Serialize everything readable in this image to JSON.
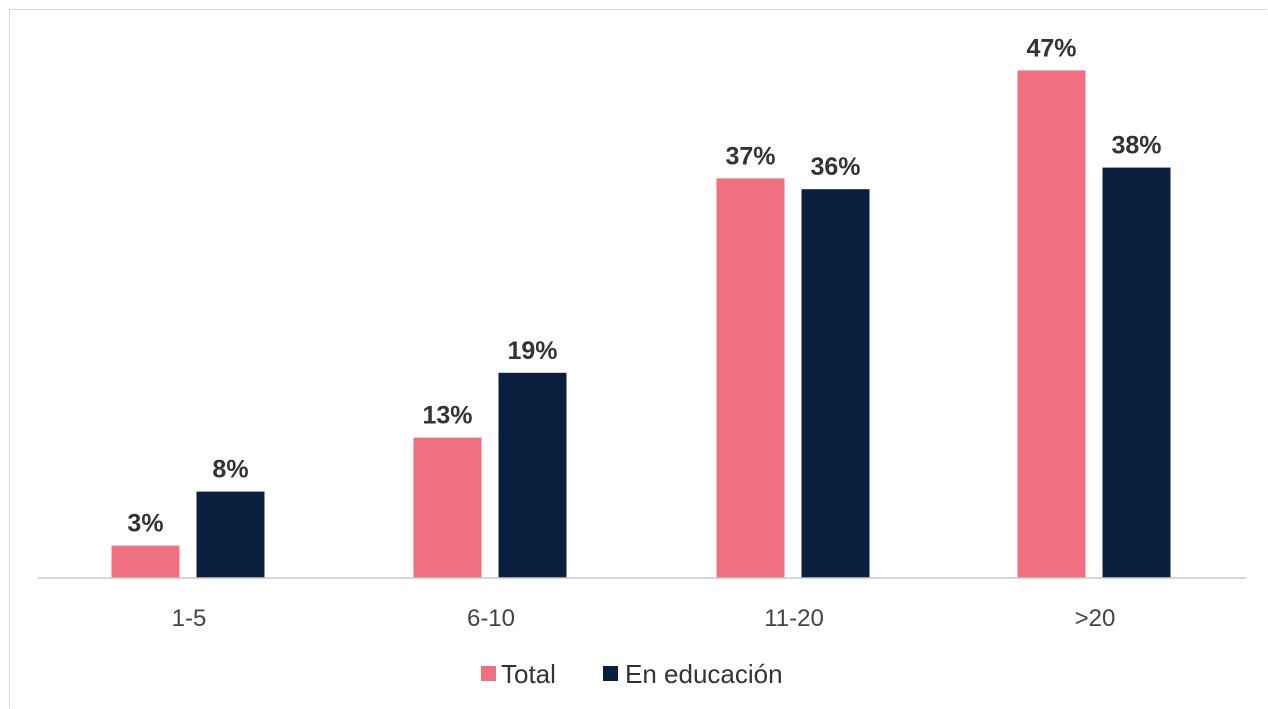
{
  "chart_data": {
    "type": "bar",
    "categories": [
      "1-5",
      "6-10",
      "11-20",
      ">20"
    ],
    "series": [
      {
        "name": "Total",
        "values": [
          3,
          13,
          37,
          47
        ],
        "labels": [
          "3%",
          "13%",
          "37%",
          "47%"
        ],
        "color": "#f07080"
      },
      {
        "name": "En educación",
        "values": [
          8,
          19,
          36,
          38
        ],
        "labels": [
          "8%",
          "19%",
          "36%",
          "38%"
        ],
        "color": "#0b1f3f"
      }
    ],
    "ylim": [
      0,
      55
    ],
    "grid": false,
    "legend_position": "bottom-center",
    "axis_color": "#c8c8c8"
  }
}
